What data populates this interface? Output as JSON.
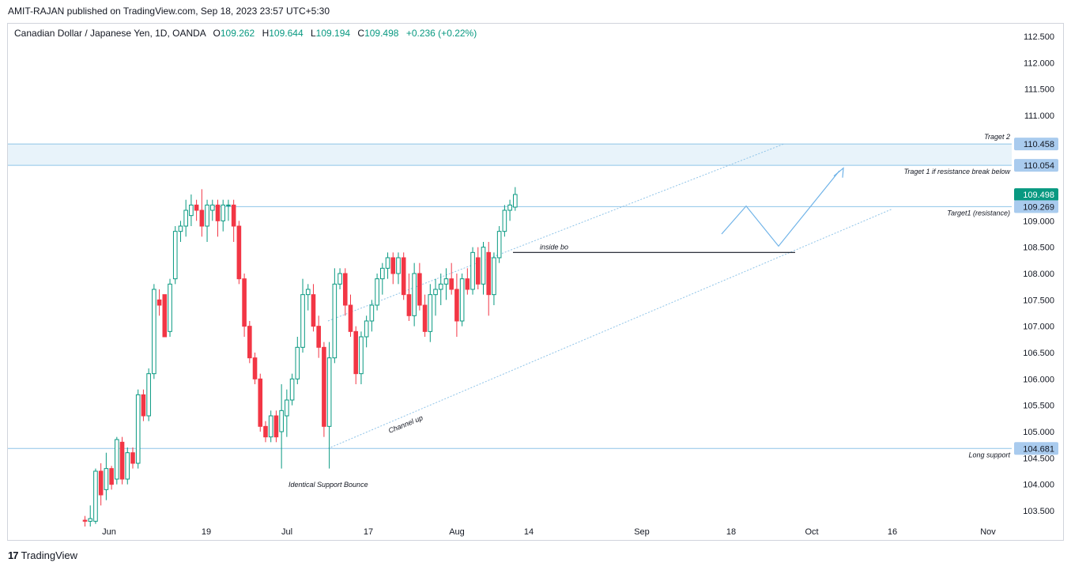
{
  "header": {
    "published_line": "AMIT-RAJAN published on TradingView.com, Sep 18, 2023 23:57 UTC+5:30",
    "symbol": "Canadian Dollar / Japanese Yen, 1D, OANDA",
    "open_label": "O",
    "open": "109.262",
    "high_label": "H",
    "high": "109.644",
    "low_label": "L",
    "low": "109.194",
    "close_label": "C",
    "close": "109.498",
    "change": "+0.236 (+0.22%)"
  },
  "footer": {
    "brand": "TradingView",
    "logo_mark": "17"
  },
  "colors": {
    "up": "#089981",
    "down": "#f23645",
    "line": "#8fc4e8",
    "zone": "#e8f3fa",
    "label_bg": "#a9cbee",
    "price_badge": "#089981"
  },
  "chart_data": {
    "type": "candlestick",
    "y_ticks": [
      "112.500",
      "112.000",
      "111.500",
      "111.000",
      "109.000",
      "108.500",
      "108.000",
      "107.500",
      "107.000",
      "106.500",
      "106.000",
      "105.500",
      "105.000",
      "104.500",
      "104.000",
      "103.500"
    ],
    "ylim": [
      103.25,
      112.85
    ],
    "x_ticks": [
      "Jun",
      "19",
      "Jul",
      "17",
      "Aug",
      "14",
      "Sep",
      "18",
      "Oct",
      "16",
      "Nov"
    ],
    "price_labels": [
      {
        "value": "110.458",
        "type": "level"
      },
      {
        "value": "110.054",
        "type": "level"
      },
      {
        "value": "109.498",
        "type": "last"
      },
      {
        "value": "109.269",
        "type": "level"
      },
      {
        "value": "104.681",
        "type": "level"
      }
    ],
    "annotations": [
      "Traget 2",
      "Traget 1 if resistance break below",
      "Target1 (resistance)",
      "inside bo",
      "Channel up",
      "Identical Support Bounce",
      "Long support"
    ],
    "candles": [
      [
        103.32,
        103.4,
        103.2,
        103.3
      ],
      [
        103.3,
        103.6,
        103.2,
        103.35
      ],
      [
        103.3,
        104.3,
        103.25,
        104.25
      ],
      [
        104.25,
        104.4,
        103.6,
        103.8
      ],
      [
        103.9,
        104.6,
        103.7,
        104.3
      ],
      [
        104.3,
        104.35,
        103.9,
        104.0
      ],
      [
        104.1,
        104.9,
        104.0,
        104.85
      ],
      [
        104.8,
        104.9,
        104.0,
        104.1
      ],
      [
        104.1,
        104.7,
        104.0,
        104.6
      ],
      [
        104.6,
        104.7,
        104.3,
        104.4
      ],
      [
        104.4,
        105.8,
        104.3,
        105.7
      ],
      [
        105.7,
        105.8,
        105.2,
        105.3
      ],
      [
        105.3,
        106.2,
        105.2,
        106.1
      ],
      [
        106.1,
        107.8,
        106.0,
        107.7
      ],
      [
        107.5,
        107.7,
        107.2,
        107.4
      ],
      [
        107.6,
        107.6,
        106.8,
        106.8
      ],
      [
        106.9,
        107.9,
        106.8,
        107.8
      ],
      [
        107.9,
        108.9,
        107.8,
        108.8
      ],
      [
        108.8,
        109.0,
        108.6,
        108.9
      ],
      [
        108.9,
        109.4,
        108.7,
        109.2
      ],
      [
        109.1,
        109.5,
        108.9,
        109.3
      ],
      [
        109.3,
        109.4,
        109.0,
        109.2
      ],
      [
        109.2,
        109.6,
        108.7,
        108.9
      ],
      [
        108.9,
        109.4,
        108.6,
        109.3
      ],
      [
        109.2,
        109.4,
        109.0,
        109.3
      ],
      [
        109.3,
        109.4,
        108.7,
        109.0
      ],
      [
        109.0,
        109.4,
        108.8,
        109.3
      ],
      [
        109.3,
        109.4,
        109.0,
        109.3
      ],
      [
        109.3,
        109.4,
        108.6,
        108.9
      ],
      [
        108.9,
        109.0,
        107.8,
        107.9
      ],
      [
        107.9,
        108.0,
        106.8,
        107.0
      ],
      [
        107.0,
        107.1,
        106.3,
        106.4
      ],
      [
        106.4,
        106.5,
        105.9,
        106.0
      ],
      [
        106.0,
        106.1,
        105.0,
        105.1
      ],
      [
        105.1,
        105.2,
        104.8,
        104.9
      ],
      [
        104.9,
        105.4,
        104.8,
        105.3
      ],
      [
        105.3,
        105.4,
        104.8,
        104.9
      ],
      [
        105.0,
        105.9,
        104.3,
        105.4
      ],
      [
        105.3,
        105.8,
        104.9,
        105.6
      ],
      [
        105.6,
        106.1,
        105.5,
        106.0
      ],
      [
        106.0,
        106.8,
        105.9,
        106.6
      ],
      [
        106.6,
        107.9,
        106.5,
        107.6
      ],
      [
        107.6,
        107.8,
        107.3,
        107.7
      ],
      [
        107.6,
        107.8,
        106.9,
        107.0
      ],
      [
        107.0,
        107.2,
        106.4,
        106.6
      ],
      [
        106.6,
        106.7,
        104.9,
        105.1
      ],
      [
        105.1,
        106.7,
        104.3,
        106.4
      ],
      [
        106.4,
        108.1,
        106.3,
        107.8
      ],
      [
        107.8,
        108.1,
        107.7,
        108.0
      ],
      [
        108.0,
        108.1,
        107.2,
        107.4
      ],
      [
        107.4,
        107.6,
        106.8,
        106.9
      ],
      [
        106.9,
        107.0,
        105.9,
        106.1
      ],
      [
        106.1,
        106.9,
        105.9,
        106.8
      ],
      [
        106.8,
        107.2,
        106.6,
        107.1
      ],
      [
        107.1,
        107.5,
        106.9,
        107.4
      ],
      [
        107.4,
        108.0,
        107.3,
        107.9
      ],
      [
        107.9,
        108.2,
        107.6,
        108.1
      ],
      [
        108.1,
        108.4,
        107.9,
        108.3
      ],
      [
        108.3,
        108.4,
        107.8,
        108.0
      ],
      [
        108.0,
        108.4,
        107.8,
        108.3
      ],
      [
        108.3,
        108.4,
        107.5,
        107.6
      ],
      [
        107.6,
        108.0,
        107.1,
        107.2
      ],
      [
        107.2,
        108.2,
        107.0,
        108.0
      ],
      [
        108.0,
        108.2,
        107.3,
        107.4
      ],
      [
        107.4,
        107.6,
        106.8,
        106.9
      ],
      [
        106.9,
        107.8,
        106.7,
        107.6
      ],
      [
        107.6,
        107.9,
        107.2,
        107.7
      ],
      [
        107.7,
        108.0,
        107.4,
        107.8
      ],
      [
        107.8,
        108.1,
        107.5,
        107.9
      ],
      [
        107.9,
        108.2,
        107.6,
        107.7
      ],
      [
        107.7,
        108.0,
        106.8,
        107.1
      ],
      [
        107.1,
        108.0,
        107.0,
        107.9
      ],
      [
        107.9,
        108.1,
        107.6,
        107.7
      ],
      [
        107.7,
        108.5,
        107.6,
        108.4
      ],
      [
        108.3,
        108.5,
        107.7,
        107.8
      ],
      [
        107.8,
        108.6,
        107.6,
        108.5
      ],
      [
        108.4,
        108.6,
        107.2,
        107.6
      ],
      [
        107.6,
        108.4,
        107.4,
        108.3
      ],
      [
        108.3,
        108.9,
        108.2,
        108.8
      ],
      [
        108.8,
        109.3,
        108.7,
        109.2
      ],
      [
        109.2,
        109.4,
        109.0,
        109.3
      ],
      [
        109.26,
        109.64,
        109.19,
        109.5
      ]
    ]
  }
}
